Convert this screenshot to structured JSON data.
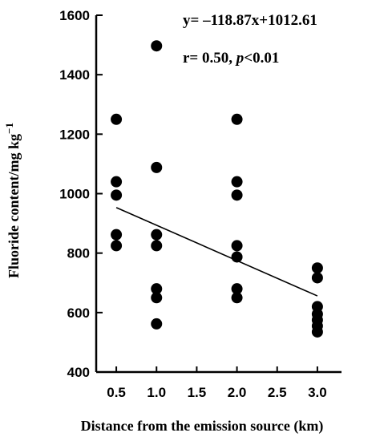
{
  "chart_data": {
    "type": "scatter",
    "xlabel": "Distance from the emission source (km)",
    "ylabel": "Fluoride content/mg kg",
    "ylabel_superscript": "−1",
    "annotations": {
      "equation": "y= –118.87x+1012.61",
      "stat_r": "r= 0.50, ",
      "stat_p_italic": "p",
      "stat_p_rest": "<0.01"
    },
    "xlim": [
      0.25,
      3.3
    ],
    "ylim": [
      400,
      1600
    ],
    "x_ticks": [
      0.5,
      1.0,
      1.5,
      2.0,
      2.5,
      3.0
    ],
    "x_tick_labels": [
      "0.5",
      "1.0",
      "1.5",
      "2.0",
      "2.5",
      "3.0"
    ],
    "y_ticks": [
      400,
      600,
      800,
      1000,
      1200,
      1400,
      1600
    ],
    "y_tick_labels": [
      "400",
      "600",
      "800",
      "1000",
      "1200",
      "1400",
      "1600"
    ],
    "points": [
      {
        "x": 0.5,
        "y": 1250
      },
      {
        "x": 0.5,
        "y": 1040
      },
      {
        "x": 0.5,
        "y": 995
      },
      {
        "x": 0.5,
        "y": 862
      },
      {
        "x": 0.5,
        "y": 825
      },
      {
        "x": 1.0,
        "y": 1497
      },
      {
        "x": 1.0,
        "y": 1088
      },
      {
        "x": 1.0,
        "y": 862
      },
      {
        "x": 1.0,
        "y": 825
      },
      {
        "x": 1.0,
        "y": 680
      },
      {
        "x": 1.0,
        "y": 650
      },
      {
        "x": 1.0,
        "y": 562
      },
      {
        "x": 2.0,
        "y": 1250
      },
      {
        "x": 2.0,
        "y": 1040
      },
      {
        "x": 2.0,
        "y": 995
      },
      {
        "x": 2.0,
        "y": 825
      },
      {
        "x": 2.0,
        "y": 787
      },
      {
        "x": 2.0,
        "y": 680
      },
      {
        "x": 2.0,
        "y": 650
      },
      {
        "x": 3.0,
        "y": 750
      },
      {
        "x": 3.0,
        "y": 717
      },
      {
        "x": 3.0,
        "y": 620
      },
      {
        "x": 3.0,
        "y": 595
      },
      {
        "x": 3.0,
        "y": 575
      },
      {
        "x": 3.0,
        "y": 555
      },
      {
        "x": 3.0,
        "y": 535
      }
    ],
    "regression": {
      "slope": -118.87,
      "intercept": 1012.61,
      "x_range": [
        0.5,
        3.0
      ]
    },
    "grid": false,
    "legend": "none"
  }
}
